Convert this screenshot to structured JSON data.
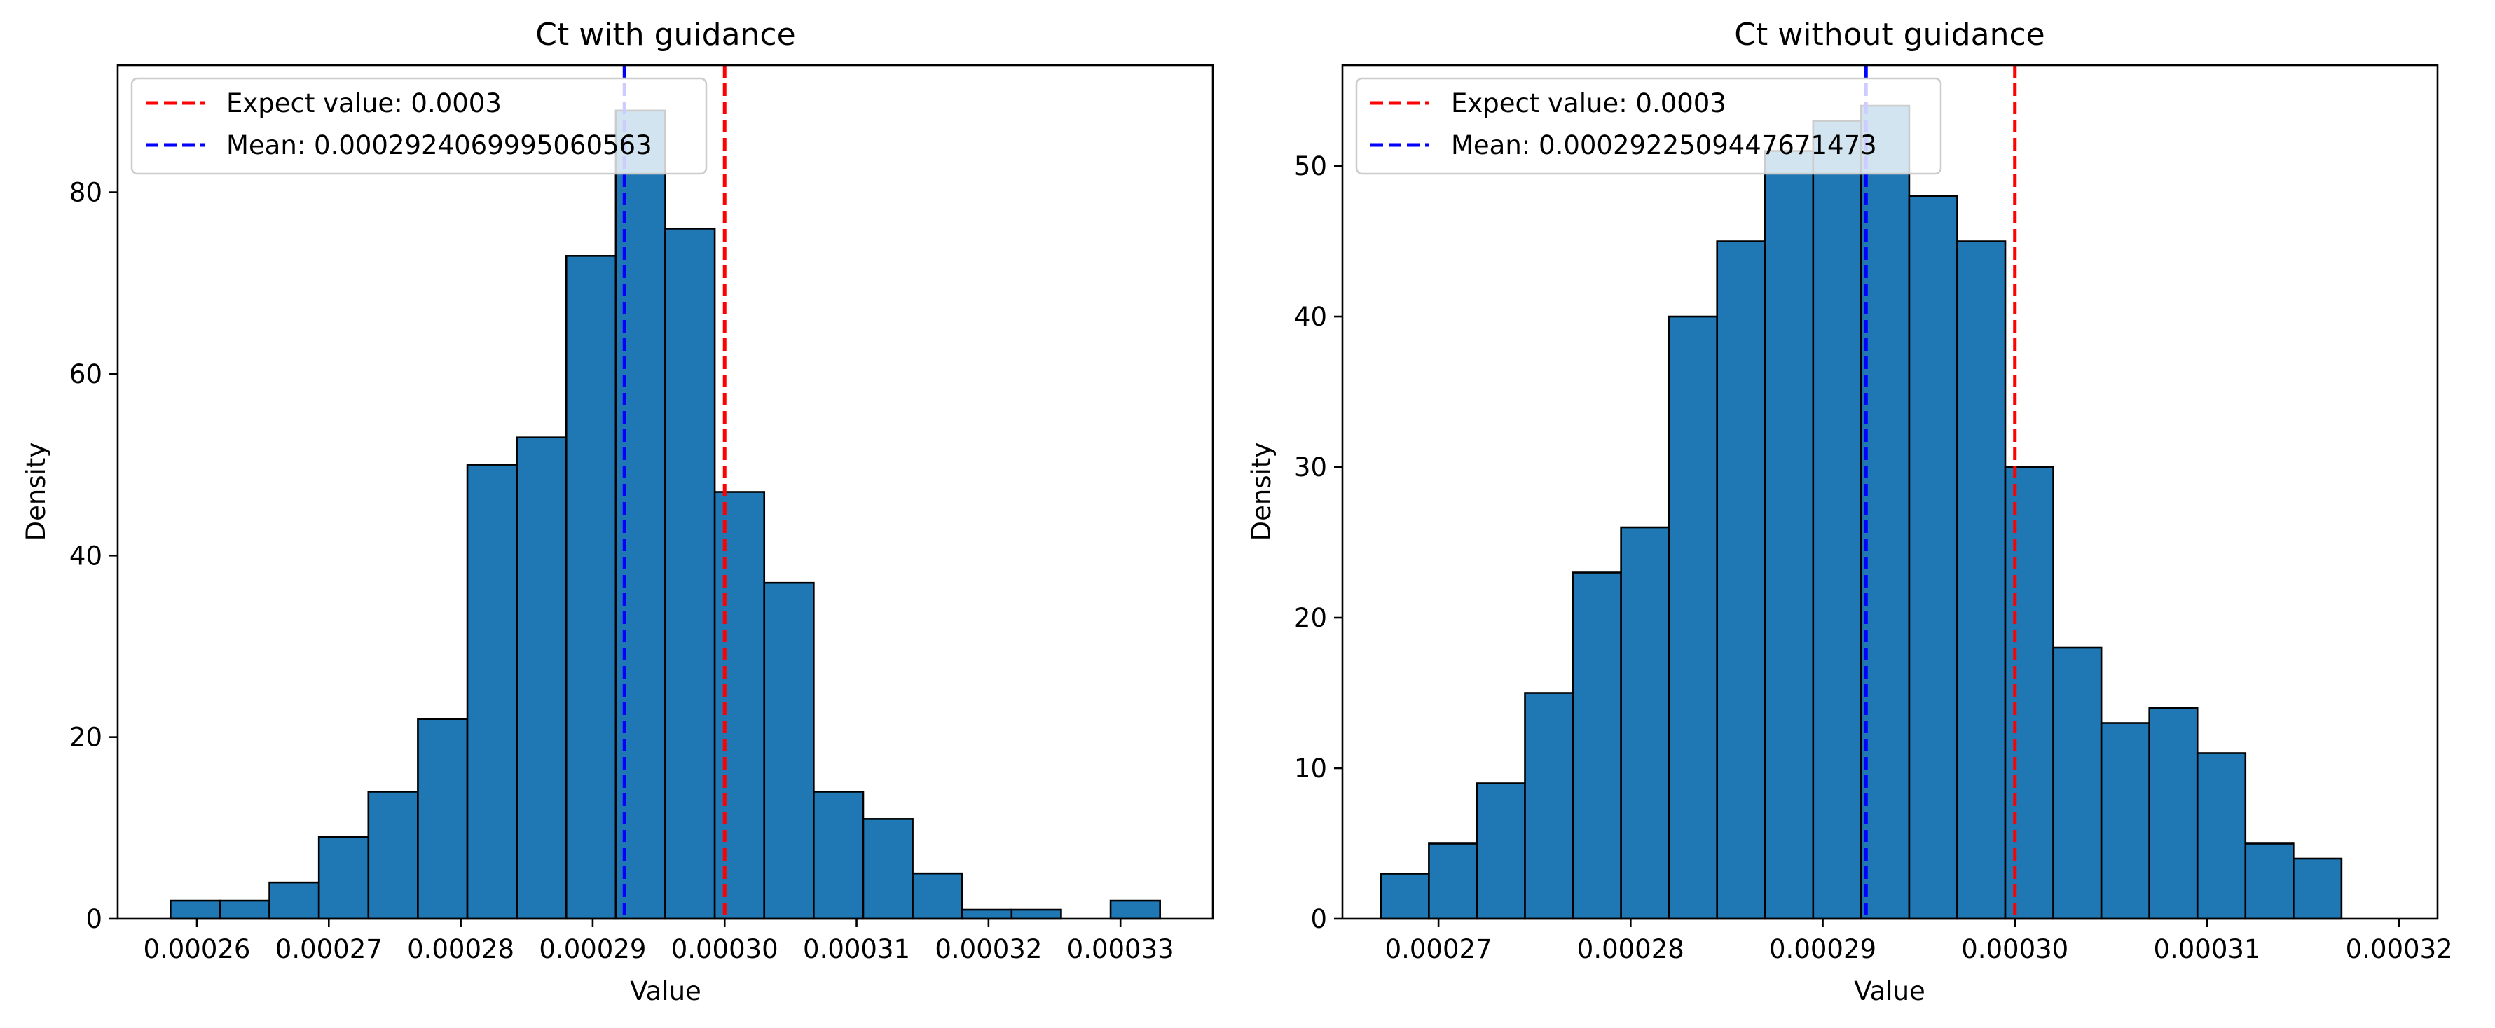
{
  "chart_data": [
    {
      "type": "bar",
      "title": "Ct with guidance",
      "xlabel": "Value",
      "ylabel": "Density",
      "xlim": [
        0.000254,
        0.000337
      ],
      "ylim": [
        0,
        94
      ],
      "xticks": [
        0.00026,
        0.00027,
        0.00028,
        0.00029,
        0.0003,
        0.00031,
        0.00032,
        0.00033
      ],
      "xtick_labels": [
        "0.00026",
        "0.00027",
        "0.00028",
        "0.00029",
        "0.00030",
        "0.00031",
        "0.00032",
        "0.00033"
      ],
      "yticks": [
        0,
        20,
        40,
        60,
        80
      ],
      "ytick_labels": [
        "0",
        "20",
        "40",
        "60",
        "80"
      ],
      "bin_start": 0.000258,
      "bin_width": 3.75e-06,
      "values": [
        2,
        2,
        4,
        9,
        14,
        22,
        50,
        53,
        73,
        89,
        76,
        47,
        37,
        14,
        11,
        5,
        1,
        1,
        0,
        2
      ],
      "bar_color": "#1f77b4",
      "edge_color": "#000000",
      "expected_value": 0.0003,
      "mean_value": 0.0002924069995060563,
      "expected_color": "#ff0000",
      "mean_color": "#0000ff",
      "legend": {
        "position": "upper left",
        "items": [
          "Expect value: 0.0003",
          "Mean: 0.0002924069995060563"
        ]
      }
    },
    {
      "type": "bar",
      "title": "Ct without guidance",
      "xlabel": "Value",
      "ylabel": "Density",
      "xlim": [
        0.000265,
        0.000322
      ],
      "ylim": [
        0,
        56.7
      ],
      "xticks": [
        0.00027,
        0.00028,
        0.00029,
        0.0003,
        0.00031,
        0.00032
      ],
      "xtick_labels": [
        "0.00027",
        "0.00028",
        "0.00029",
        "0.00030",
        "0.00031",
        "0.00032"
      ],
      "yticks": [
        0,
        10,
        20,
        30,
        40,
        50
      ],
      "ytick_labels": [
        "0",
        "10",
        "20",
        "30",
        "40",
        "50"
      ],
      "bin_start": 0.000267,
      "bin_width": 2.5e-06,
      "values": [
        3,
        5,
        9,
        15,
        23,
        26,
        40,
        45,
        51,
        53,
        54,
        48,
        45,
        30,
        18,
        13,
        14,
        11,
        5,
        4
      ],
      "bar_color": "#1f77b4",
      "edge_color": "#000000",
      "expected_value": 0.0003,
      "mean_value": 0.0002922509447671473,
      "expected_color": "#ff0000",
      "mean_color": "#0000ff",
      "legend": {
        "position": "upper left",
        "items": [
          "Expect value: 0.0003",
          "Mean: 0.0002922509447671473"
        ]
      }
    }
  ]
}
